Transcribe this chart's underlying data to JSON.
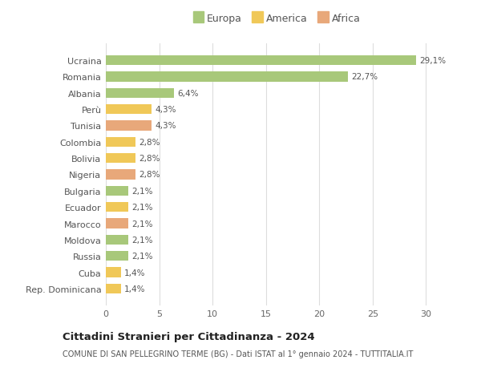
{
  "countries": [
    "Rep. Dominicana",
    "Cuba",
    "Russia",
    "Moldova",
    "Marocco",
    "Ecuador",
    "Bulgaria",
    "Nigeria",
    "Bolivia",
    "Colombia",
    "Tunisia",
    "Perù",
    "Albania",
    "Romania",
    "Ucraina"
  ],
  "values": [
    1.4,
    1.4,
    2.1,
    2.1,
    2.1,
    2.1,
    2.1,
    2.8,
    2.8,
    2.8,
    4.3,
    4.3,
    6.4,
    22.7,
    29.1
  ],
  "colors": [
    "#f0c858",
    "#f0c858",
    "#a8c87a",
    "#a8c87a",
    "#e8a87a",
    "#f0c858",
    "#a8c87a",
    "#e8a87a",
    "#f0c858",
    "#f0c858",
    "#e8a87a",
    "#f0c858",
    "#a8c87a",
    "#a8c87a",
    "#a8c87a"
  ],
  "continents": [
    "America",
    "America",
    "Europa",
    "Europa",
    "Africa",
    "America",
    "Europa",
    "Africa",
    "America",
    "America",
    "Africa",
    "America",
    "Europa",
    "Europa",
    "Europa"
  ],
  "legend_labels": [
    "Europa",
    "America",
    "Africa"
  ],
  "legend_colors": [
    "#a8c87a",
    "#f0c858",
    "#e8a87a"
  ],
  "title": "Cittadini Stranieri per Cittadinanza - 2024",
  "subtitle": "COMUNE DI SAN PELLEGRINO TERME (BG) - Dati ISTAT al 1° gennaio 2024 - TUTTITALIA.IT",
  "xlim": [
    0,
    32
  ],
  "xticks": [
    0,
    5,
    10,
    15,
    20,
    25,
    30
  ],
  "background_color": "#ffffff",
  "plot_bg_color": "#ffffff",
  "grid_color": "#dddddd"
}
